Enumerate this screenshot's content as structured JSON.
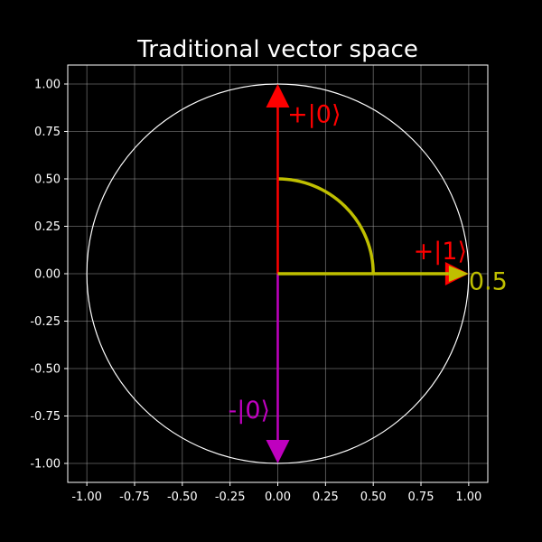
{
  "chart_data": {
    "type": "line",
    "title": "Traditional vector space",
    "xlabel": "",
    "ylabel": "",
    "xlim": [
      -1.1,
      1.1
    ],
    "ylim": [
      -1.1,
      1.1
    ],
    "grid": true,
    "x_ticks": [
      "-1.00",
      "-0.75",
      "-0.50",
      "-0.25",
      "0.00",
      "0.25",
      "0.50",
      "0.75",
      "1.00"
    ],
    "y_ticks": [
      "1.00",
      "0.75",
      "0.50",
      "0.25",
      "0.00",
      "-0.25",
      "-0.50",
      "-0.75",
      "-1.00"
    ],
    "unit_circle": {
      "center": [
        0,
        0
      ],
      "radius": 1.0,
      "color": "#ffffff"
    },
    "vectors": [
      {
        "id": "plus-zero",
        "label": "+|0⟩",
        "from": [
          0,
          0
        ],
        "to": [
          0,
          1
        ],
        "color": "#ff0000",
        "label_at": [
          0.05,
          0.84
        ]
      },
      {
        "id": "plus-one",
        "label": "+|1⟩",
        "from": [
          0,
          0
        ],
        "to": [
          1,
          0
        ],
        "color": "#ff0000",
        "label_at": [
          0.71,
          0.12
        ]
      },
      {
        "id": "minus-zero",
        "label": "-|0⟩",
        "from": [
          0,
          0
        ],
        "to": [
          0,
          -1
        ],
        "color": "#bf00bf",
        "label_at": [
          -0.26,
          -0.72
        ]
      },
      {
        "id": "result",
        "label": "0.5",
        "from": [
          0,
          0
        ],
        "to": [
          1,
          0
        ],
        "color": "#bfbf00",
        "label_at": [
          1.0,
          -0.04
        ]
      }
    ],
    "angle_arc": {
      "radius": 0.5,
      "start_deg": 0,
      "end_deg": 90,
      "color": "#bfbf00"
    }
  },
  "colors": {
    "background": "#000000",
    "axes": "#ffffff",
    "grid": "#b0b0b0"
  }
}
